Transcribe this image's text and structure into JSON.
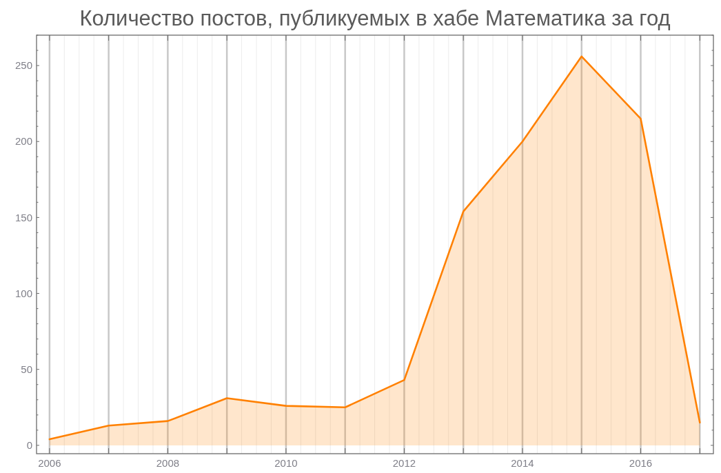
{
  "chart_data": {
    "type": "area",
    "title": "Количество постов, публикуемых в хабе Математика за год",
    "x": [
      2006,
      2007,
      2008,
      2009,
      2010,
      2011,
      2012,
      2013,
      2014,
      2015,
      2016,
      2017
    ],
    "values": [
      4,
      13,
      16,
      31,
      26,
      25,
      43,
      154,
      200,
      256,
      215,
      15
    ],
    "color": "#ff8000",
    "xlim": [
      2005.78,
      2017.23
    ],
    "xticks": [
      2006,
      {
        "value": 2007,
        "label": null
      },
      2008,
      {
        "value": 2009,
        "label": null
      },
      2010,
      {
        "value": 2011,
        "label": null
      },
      2012,
      {
        "value": 2013,
        "label": null
      },
      2014,
      {
        "value": 2015,
        "label": null
      },
      2016,
      {
        "value": 2017,
        "label": null
      }
    ],
    "ylim": [
      -5.5,
      270
    ],
    "yticks": [
      0,
      {
        "value": 10,
        "label": null
      },
      {
        "value": 20,
        "label": null
      },
      {
        "value": 30,
        "label": null
      },
      {
        "value": 40,
        "label": null
      },
      50,
      {
        "value": 60,
        "label": null
      },
      {
        "value": 70,
        "label": null
      },
      {
        "value": 80,
        "label": null
      },
      {
        "value": 90,
        "label": null
      },
      100,
      {
        "value": 110,
        "label": null
      },
      {
        "value": 120,
        "label": null
      },
      {
        "value": 130,
        "label": null
      },
      {
        "value": 140,
        "label": null
      },
      150,
      {
        "value": 160,
        "label": null
      },
      {
        "value": 170,
        "label": null
      },
      {
        "value": 180,
        "label": null
      },
      {
        "value": 190,
        "label": null
      },
      200,
      {
        "value": 210,
        "label": null
      },
      {
        "value": 220,
        "label": null
      },
      {
        "value": 230,
        "label": null
      },
      {
        "value": 240,
        "label": null
      },
      250,
      {
        "value": 260,
        "label": null
      },
      {
        "value": 270,
        "label": null
      }
    ],
    "grid": "x"
  }
}
